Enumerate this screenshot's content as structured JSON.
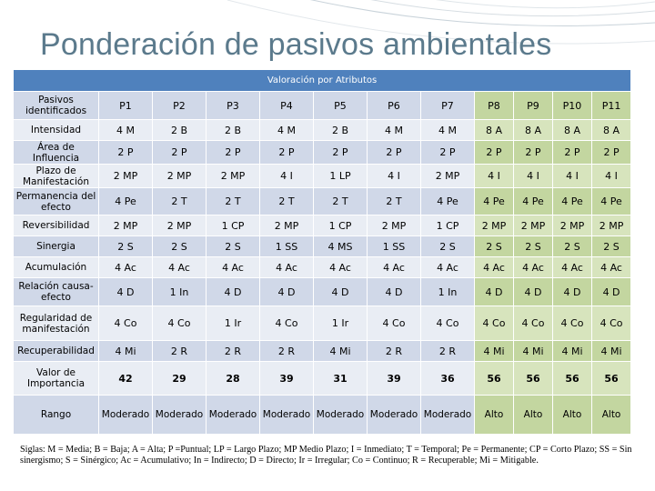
{
  "title": "Ponderación de pasivos ambientales",
  "table": {
    "header": "Valoración por Atributos",
    "columns": [
      "Pasivos identificados",
      "P1",
      "P2",
      "P3",
      "P4",
      "P5",
      "P6",
      "P7",
      "P8",
      "P9",
      "P10",
      "P11"
    ],
    "rows": [
      {
        "label": "Intensidad",
        "values": [
          "4 M",
          "2 B",
          "2 B",
          "4 M",
          "2 B",
          "4 M",
          "4 M",
          "8 A",
          "8 A",
          "8 A",
          "8 A"
        ]
      },
      {
        "label": "Área de Influencia",
        "values": [
          "2 P",
          "2 P",
          "2 P",
          "2 P",
          "2 P",
          "2 P",
          "2 P",
          "2 P",
          "2 P",
          "2 P",
          "2 P"
        ]
      },
      {
        "label": "Plazo de Manifestación",
        "values": [
          "2 MP",
          "2 MP",
          "2 MP",
          "4 I",
          "1  LP",
          "4 I",
          "2 MP",
          "4 I",
          "4 I",
          "4 I",
          "4 I"
        ]
      },
      {
        "label": "Permanencia del efecto",
        "values": [
          "4 Pe",
          "2 T",
          "2 T",
          "2 T",
          "2 T",
          "2 T",
          "4 Pe",
          "4 Pe",
          "4 Pe",
          "4 Pe",
          "4 Pe"
        ]
      },
      {
        "label": "Reversibilidad",
        "values": [
          "2 MP",
          "2 MP",
          "1 CP",
          "2 MP",
          "1 CP",
          "2 MP",
          "1 CP",
          "2 MP",
          "2 MP",
          "2 MP",
          "2 MP"
        ]
      },
      {
        "label": "Sinergia",
        "values": [
          "2 S",
          "2 S",
          "2 S",
          "1 SS",
          "4 MS",
          "1 SS",
          "2 S",
          "2 S",
          "2 S",
          "2 S",
          "2 S"
        ]
      },
      {
        "label": "Acumulación",
        "values": [
          "4 Ac",
          "4 Ac",
          "4 Ac",
          "4 Ac",
          "4 Ac",
          "4 Ac",
          "4 Ac",
          "4 Ac",
          "4 Ac",
          "4 Ac",
          "4 Ac"
        ]
      },
      {
        "label": "Relación causa-efecto",
        "values": [
          "4 D",
          "1 In",
          "4 D",
          "4 D",
          "4 D",
          "4 D",
          "1 In",
          "4 D",
          "4 D",
          "4 D",
          "4 D"
        ]
      },
      {
        "label": "Regularidad de manifestación",
        "values": [
          "4 Co",
          "4 Co",
          "1 Ir",
          "4 Co",
          "1 Ir",
          "4 Co",
          "4 Co",
          "4 Co",
          "4 Co",
          "4 Co",
          "4 Co"
        ]
      },
      {
        "label": "Recuperabilidad",
        "values": [
          "4 Mi",
          "2 R",
          "2 R",
          "2 R",
          "4 Mi",
          "2 R",
          "2 R",
          "4 Mi",
          "4 Mi",
          "4 Mi",
          "4 Mi"
        ]
      },
      {
        "label": "Valor de Importancia",
        "values": [
          "42",
          "29",
          "28",
          "39",
          "31",
          "39",
          "36",
          "56",
          "56",
          "56",
          "56"
        ]
      },
      {
        "label": "Rango",
        "values": [
          "Moderado",
          "Moderado",
          "Moderado",
          "Moderado",
          "Moderado",
          "Moderado",
          "Moderado",
          "Alto",
          "Alto",
          "Alto",
          "Alto"
        ]
      }
    ]
  },
  "footnote": "Siglas: M = Media; B = Baja; A = Alta; P =Puntual; LP = Largo Plazo; MP Medio Plazo; I = Inmediato; T = Temporal; Pe = Permanente; CP = Corto Plazo; SS = Sin sinergismo; S = Sinérgico; Ac = Acumulativo; In = Indirecto; D = Directo; Ir = Irregular; Co = Continuo; R = Recuperable; Mi = Mitigable."
}
